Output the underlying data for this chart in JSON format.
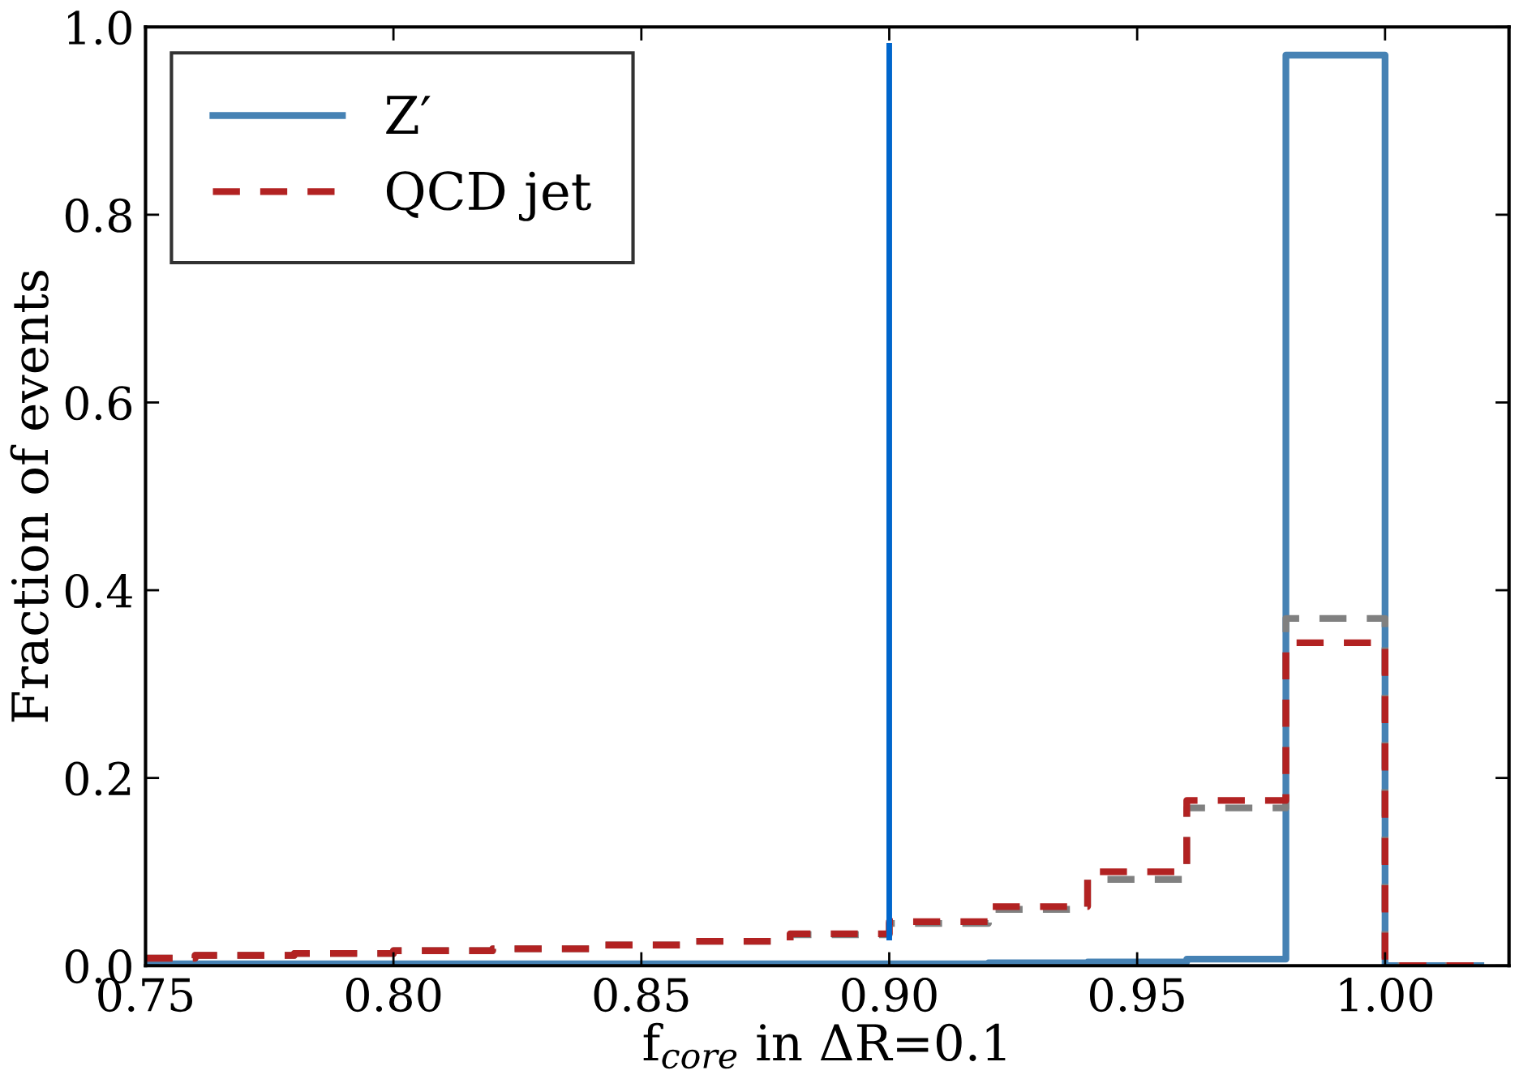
{
  "chart_data": {
    "type": "histogram",
    "xlabel": "f$_{core}$ in ΔR=0.1",
    "ylabel": "Fraction of events",
    "bins": [
      0.75,
      0.76,
      0.78,
      0.8,
      0.82,
      0.84,
      0.86,
      0.88,
      0.9,
      0.92,
      0.94,
      0.96,
      0.98,
      1.0,
      1.02
    ],
    "series": [
      {
        "name": "Z′",
        "color": "#4682b4",
        "line_style": "solid",
        "values": [
          0.002,
          0.002,
          0.002,
          0.002,
          0.002,
          0.002,
          0.002,
          0.002,
          0.002,
          0.003,
          0.004,
          0.007,
          0.97,
          0.0
        ]
      },
      {
        "color": "#808080",
        "line_style": "dashed",
        "values": [
          0.008,
          0.011,
          0.013,
          0.016,
          0.018,
          0.022,
          0.026,
          0.033,
          0.045,
          0.06,
          0.092,
          0.168,
          0.37,
          0.0
        ]
      },
      {
        "name": "QCD jet",
        "color": "#b22222",
        "line_style": "dashed",
        "values": [
          0.008,
          0.011,
          0.013,
          0.016,
          0.018,
          0.022,
          0.026,
          0.034,
          0.047,
          0.063,
          0.1,
          0.176,
          0.344,
          0.0
        ]
      }
    ],
    "ref_lines": [
      {
        "axis": "x",
        "value": 0.9,
        "color": "#0066cc",
        "line_style": "solid"
      }
    ],
    "xlim": [
      0.75,
      1.025
    ],
    "xticks": [
      {
        "value": 0.75,
        "label": "0.75"
      },
      {
        "value": 0.8,
        "label": "0.80"
      },
      {
        "value": 0.85,
        "label": "0.85"
      },
      {
        "value": 0.9,
        "label": "0.90"
      },
      {
        "value": 0.95,
        "label": "0.95"
      },
      {
        "value": 1.0,
        "label": "1.00"
      }
    ],
    "ylim": [
      0,
      1
    ],
    "yticks": [
      {
        "value": 0,
        "label": "0.0"
      },
      {
        "value": 0.2,
        "label": "0.2"
      },
      {
        "value": 0.4,
        "label": "0.4"
      },
      {
        "value": 0.6,
        "label": "0.6"
      },
      {
        "value": 0.8,
        "label": "0.8"
      },
      {
        "value": 1.0,
        "label": "1.0"
      }
    ],
    "grid": false,
    "legend": "top left"
  }
}
